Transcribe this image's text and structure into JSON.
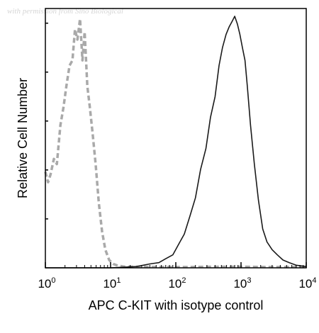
{
  "watermark": "with permission from Sino Biological",
  "chart_data": {
    "type": "line",
    "title": "",
    "xlabel": "APC C-KIT with isotype control",
    "ylabel": "Relative Cell Number",
    "x_scale": "log",
    "xlim": [
      1,
      10000
    ],
    "ylim": [
      0,
      1
    ],
    "x_ticks": [
      {
        "base": "10",
        "exp": "0",
        "value": 1
      },
      {
        "base": "10",
        "exp": "1",
        "value": 10
      },
      {
        "base": "10",
        "exp": "2",
        "value": 100
      },
      {
        "base": "10",
        "exp": "3",
        "value": 1000
      },
      {
        "base": "10",
        "exp": "4",
        "value": 10000
      }
    ],
    "y_ticks_labeled": false,
    "grid": false,
    "legend": "none",
    "series": [
      {
        "style": "dashed",
        "color": "#a9a9a9",
        "x": [
          1.0,
          1.1,
          1.2,
          1.35,
          1.5,
          1.7,
          1.9,
          2.1,
          2.35,
          2.6,
          2.85,
          3.1,
          3.4,
          3.7,
          4.0,
          4.4,
          4.8,
          5.3,
          5.9,
          6.6,
          7.4,
          8.3,
          9.5,
          11,
          13,
          16,
          20,
          30,
          60,
          150,
          400,
          1000,
          3000,
          10000
        ],
        "y": [
          0.37,
          0.33,
          0.36,
          0.42,
          0.4,
          0.55,
          0.62,
          0.7,
          0.78,
          0.8,
          0.92,
          0.88,
          0.96,
          0.8,
          0.91,
          0.7,
          0.62,
          0.52,
          0.4,
          0.25,
          0.14,
          0.07,
          0.03,
          0.015,
          0.008,
          0.005,
          0.004,
          0.004,
          0.003,
          0.003,
          0.004,
          0.004,
          0.003,
          0.003
        ]
      },
      {
        "style": "solid",
        "color": "#1a1a1a",
        "x": [
          1.0,
          10,
          25,
          40,
          55,
          70,
          90,
          110,
          135,
          165,
          200,
          240,
          290,
          340,
          400,
          460,
          520,
          590,
          660,
          730,
          800,
          880,
          960,
          1050,
          1150,
          1250,
          1400,
          1600,
          1850,
          2150,
          2500,
          3000,
          3600,
          4400,
          5500,
          7000,
          10000
        ],
        "y": [
          0.0,
          0.0,
          0.005,
          0.015,
          0.02,
          0.035,
          0.05,
          0.09,
          0.13,
          0.2,
          0.27,
          0.38,
          0.46,
          0.58,
          0.66,
          0.78,
          0.85,
          0.9,
          0.93,
          0.95,
          0.97,
          0.94,
          0.9,
          0.85,
          0.8,
          0.7,
          0.55,
          0.4,
          0.26,
          0.15,
          0.1,
          0.07,
          0.05,
          0.03,
          0.02,
          0.01,
          0.005
        ]
      }
    ]
  }
}
